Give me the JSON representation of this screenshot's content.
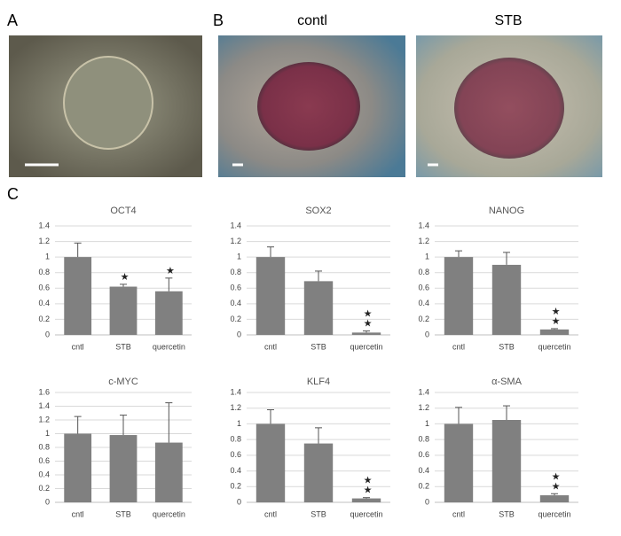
{
  "panel_labels": [
    "A",
    "B",
    "C"
  ],
  "image_titles": [
    "contl",
    "STB"
  ],
  "chart_data": [
    {
      "type": "bar",
      "title": "OCT4",
      "categories": [
        "cntl",
        "STB",
        "quercetin"
      ],
      "values": [
        1.0,
        0.62,
        0.56
      ],
      "errors": [
        0.18,
        0.03,
        0.17
      ],
      "significance": [
        null,
        "★",
        "★"
      ],
      "color": "#808080",
      "ylim": [
        0,
        1.4
      ],
      "yticks": [
        0,
        0.2,
        0.4,
        0.6,
        0.8,
        1,
        1.2,
        1.4
      ],
      "grid": true
    },
    {
      "type": "bar",
      "title": "SOX2",
      "categories": [
        "cntl",
        "STB",
        "quercetin"
      ],
      "values": [
        1.0,
        0.69,
        0.03
      ],
      "errors": [
        0.13,
        0.13,
        0.02
      ],
      "significance": [
        null,
        null,
        "★★"
      ],
      "color": "#808080",
      "ylim": [
        0,
        1.4
      ],
      "yticks": [
        0,
        0.2,
        0.4,
        0.6,
        0.8,
        1,
        1.2,
        1.4
      ],
      "grid": true
    },
    {
      "type": "bar",
      "title": "NANOG",
      "categories": [
        "cntl",
        "STB",
        "quercetin"
      ],
      "values": [
        1.0,
        0.9,
        0.07
      ],
      "errors": [
        0.08,
        0.16,
        0.01
      ],
      "significance": [
        null,
        null,
        "★★"
      ],
      "color": "#808080",
      "ylim": [
        0,
        1.4
      ],
      "yticks": [
        0,
        0.2,
        0.4,
        0.6,
        0.8,
        1,
        1.2,
        1.4
      ],
      "grid": true
    },
    {
      "type": "bar",
      "title": "c-MYC",
      "categories": [
        "cntl",
        "STB",
        "quercetin"
      ],
      "values": [
        1.0,
        0.98,
        0.87
      ],
      "errors": [
        0.25,
        0.29,
        0.58
      ],
      "significance": [
        null,
        null,
        null
      ],
      "color": "#808080",
      "ylim": [
        0,
        1.6
      ],
      "yticks": [
        0,
        0.2,
        0.4,
        0.6,
        0.8,
        1,
        1.2,
        1.4,
        1.6
      ],
      "grid": true
    },
    {
      "type": "bar",
      "title": "KLF4",
      "categories": [
        "cntl",
        "STB",
        "quercetin"
      ],
      "values": [
        1.0,
        0.75,
        0.05
      ],
      "errors": [
        0.18,
        0.2,
        0.01
      ],
      "significance": [
        null,
        null,
        "★★"
      ],
      "color": "#808080",
      "ylim": [
        0,
        1.4
      ],
      "yticks": [
        0,
        0.2,
        0.4,
        0.6,
        0.8,
        1,
        1.2,
        1.4
      ],
      "grid": true
    },
    {
      "type": "bar",
      "title": "α-SMA",
      "categories": [
        "cntl",
        "STB",
        "quercetin"
      ],
      "values": [
        1.0,
        1.05,
        0.09
      ],
      "errors": [
        0.21,
        0.18,
        0.02
      ],
      "significance": [
        null,
        null,
        "★★"
      ],
      "color": "#808080",
      "ylim": [
        0,
        1.4
      ],
      "yticks": [
        0,
        0.2,
        0.4,
        0.6,
        0.8,
        1,
        1.2,
        1.4
      ],
      "grid": true
    }
  ]
}
